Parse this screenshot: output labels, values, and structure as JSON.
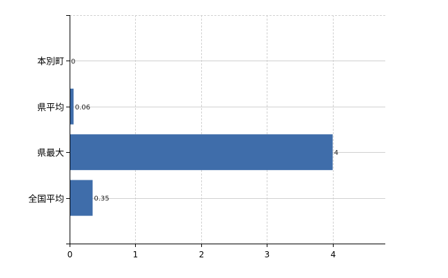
{
  "chart_data": {
    "type": "bar",
    "orientation": "horizontal",
    "title": "",
    "xlabel": "",
    "ylabel": "",
    "categories": [
      "本別町",
      "県平均",
      "県最大",
      "全国平均"
    ],
    "values": [
      0,
      0.06,
      4,
      0.35
    ],
    "data_labels": [
      "0",
      "0.06",
      "4",
      "0.35"
    ],
    "xlim": [
      0,
      4.8
    ],
    "xticks": [
      0,
      1,
      2,
      3,
      4
    ],
    "grid": true,
    "legend": "none",
    "colors": {
      "bar": "#3f6daa",
      "grid": "#d0d0d0",
      "axis": "#000000"
    }
  }
}
